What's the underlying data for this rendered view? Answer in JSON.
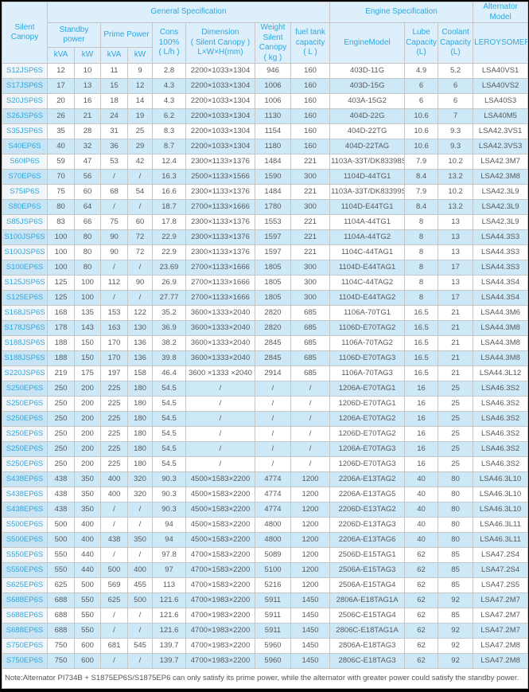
{
  "table": {
    "group_headers": {
      "general": "General Specification",
      "engine": "Engine Specification",
      "alternator": "Alternator Model"
    },
    "sub_headers": {
      "silent_canopy": "Silent Canopy",
      "standby_power": "Standby\npower",
      "prime_power": "Prime Power",
      "kva": "kVA",
      "kw": "kW",
      "cons": "Cons\n100%\n( L/h )",
      "dimension": "Dimension\n( Silent Canopy )\nL×W×H(mm)",
      "weight": "Weight\nSilent\nCanopy\n( kg )",
      "fuel_tank": "fuel tank\ncapacity\n( L )",
      "engine_model": "EngineModel",
      "lube": "Lube\nCapacity\n(L)",
      "coolant": "Coolant\nCapacity\n(L)",
      "leroysomer": "LEROYSOMER"
    },
    "rows": [
      [
        "S12JSP6S",
        "12",
        "10",
        "11",
        "9",
        "2.8",
        "2200×1033×1304",
        "946",
        "160",
        "403D-11G",
        "4.9",
        "5.2",
        "LSA40VS1"
      ],
      [
        "S17JSP6S",
        "17",
        "13",
        "15",
        "12",
        "4.3",
        "2200×1033×1304",
        "1006",
        "160",
        "403D-15G",
        "6",
        "6",
        "LSA40VS2"
      ],
      [
        "S20JSP6S",
        "20",
        "16",
        "18",
        "14",
        "4.3",
        "2200×1033×1304",
        "1006",
        "160",
        "403A-15G2",
        "6",
        "6",
        "LSA40S3"
      ],
      [
        "S26JSP6S",
        "26",
        "21",
        "24",
        "19",
        "6.2",
        "2200×1033×1304",
        "1130",
        "160",
        "404D-22G",
        "10.6",
        "7",
        "LSA40M5"
      ],
      [
        "S35JSP6S",
        "35",
        "28",
        "31",
        "25",
        "8.3",
        "2200×1033×1304",
        "1154",
        "160",
        "404D-22TG",
        "10.6",
        "9.3",
        "LSA42.3VS1"
      ],
      [
        "S40EP6S",
        "40",
        "32",
        "36",
        "29",
        "8.7",
        "2200×1033×1304",
        "1180",
        "160",
        "404D-22TAG",
        "10.6",
        "9.3",
        "LSA42.3VS3"
      ],
      [
        "S60IP6S",
        "59",
        "47",
        "53",
        "42",
        "12.4",
        "2300×1133×1376",
        "1484",
        "221",
        "1103A-33T/DK83398S",
        "7.9",
        "10.2",
        "LSA42.3M7"
      ],
      [
        "S70EP6S",
        "70",
        "56",
        "/",
        "/",
        "16.3",
        "2500×1133×1566",
        "1590",
        "300",
        "1104D-44TG1",
        "8.4",
        "13.2",
        "LSA42.3M8"
      ],
      [
        "S75IP6S",
        "75",
        "60",
        "68",
        "54",
        "16.6",
        "2300×1133×1376",
        "1484",
        "221",
        "1103A-33T/DK83399S",
        "7.9",
        "10.2",
        "LSA42.3L9"
      ],
      [
        "S80EP6S",
        "80",
        "64",
        "/",
        "/",
        "18.7",
        "2700×1133×1666",
        "1780",
        "300",
        "1104D-E44TG1",
        "8.4",
        "13.2",
        "LSA42.3L9"
      ],
      [
        "S85JSP6S",
        "83",
        "66",
        "75",
        "60",
        "17.8",
        "2300×1133×1376",
        "1553",
        "221",
        "1104A-44TG1",
        "8",
        "13",
        "LSA42.3L9"
      ],
      [
        "S100JSP6S",
        "100",
        "80",
        "90",
        "72",
        "22.9",
        "2300×1133×1376",
        "1597",
        "221",
        "1104A-44TG2",
        "8",
        "13",
        "LSA44.3S3"
      ],
      [
        "S100JSP6S",
        "100",
        "80",
        "90",
        "72",
        "22.9",
        "2300×1133×1376",
        "1597",
        "221",
        "1104C-44TAG1",
        "8",
        "13",
        "LSA44.3S3"
      ],
      [
        "S100EP6S",
        "100",
        "80",
        "/",
        "/",
        "23.69",
        "2700×1133×1666",
        "1805",
        "300",
        "1104D-E44TAG1",
        "8",
        "17",
        "LSA44.3S3"
      ],
      [
        "S125JSP6S",
        "125",
        "100",
        "112",
        "90",
        "26.9",
        "2700×1133×1666",
        "1805",
        "300",
        "1104C-44TAG2",
        "8",
        "13",
        "LSA44.3S4"
      ],
      [
        "S125EP6S",
        "125",
        "100",
        "/",
        "/",
        "27.77",
        "2700×1133×1666",
        "1805",
        "300",
        "1104D-E44TAG2",
        "8",
        "17",
        "LSA44.3S4"
      ],
      [
        "S168JSP6S",
        "168",
        "135",
        "153",
        "122",
        "35.2",
        "3600×1333×2040",
        "2820",
        "685",
        "1106A-70TG1",
        "16.5",
        "21",
        "LSA44.3M6"
      ],
      [
        "S178JSP6S",
        "178",
        "143",
        "163",
        "130",
        "36.9",
        "3600×1333×2040",
        "2820",
        "685",
        "1106D-E70TAG2",
        "16.5",
        "21",
        "LSA44.3M8"
      ],
      [
        "S188JSP6S",
        "188",
        "150",
        "170",
        "136",
        "38.2",
        "3600×1333×2040",
        "2845",
        "685",
        "1106A-70TAG2",
        "16.5",
        "21",
        "LSA44.3M8"
      ],
      [
        "S188JSP6S",
        "188",
        "150",
        "170",
        "136",
        "39.8",
        "3600×1333×2040",
        "2845",
        "685",
        "1106D-E70TAG3",
        "16.5",
        "21",
        "LSA44.3M8"
      ],
      [
        "S220JSP6S",
        "219",
        "175",
        "197",
        "158",
        "46.4",
        "3600 ×1333 ×2040",
        "2914",
        "685",
        "1106A-70TAG3",
        "16.5",
        "21",
        "LSA44.3L12"
      ],
      [
        "S250EP6S",
        "250",
        "200",
        "225",
        "180",
        "54.5",
        "/",
        "/",
        "/",
        "1206A-E70TAG1",
        "16",
        "25",
        "LSA46.3S2"
      ],
      [
        "S250EP6S",
        "250",
        "200",
        "225",
        "180",
        "54.5",
        "/",
        "/",
        "/",
        "1206D-E70TAG1",
        "16",
        "25",
        "LSA46.3S2"
      ],
      [
        "S250EP6S",
        "250",
        "200",
        "225",
        "180",
        "54.5",
        "/",
        "/",
        "/",
        "1206A-E70TAG2",
        "16",
        "25",
        "LSA46.3S2"
      ],
      [
        "S250EP6S",
        "250",
        "200",
        "225",
        "180",
        "54.5",
        "/",
        "/",
        "/",
        "1206D-E70TAG2",
        "16",
        "25",
        "LSA46.3S2"
      ],
      [
        "S250EP6S",
        "250",
        "200",
        "225",
        "180",
        "54.5",
        "/",
        "/",
        "/",
        "1206A-E70TAG3",
        "16",
        "25",
        "LSA46.3S2"
      ],
      [
        "S250EP6S",
        "250",
        "200",
        "225",
        "180",
        "54.5",
        "/",
        "/",
        "/",
        "1206D-E70TAG3",
        "16",
        "25",
        "LSA46.3S2"
      ],
      [
        "S438EP6S",
        "438",
        "350",
        "400",
        "320",
        "90.3",
        "4500×1583×2200",
        "4774",
        "1200",
        "2206A-E13TAG2",
        "40",
        "80",
        "LSA46.3L10"
      ],
      [
        "S438EP6S",
        "438",
        "350",
        "400",
        "320",
        "90.3",
        "4500×1583×2200",
        "4774",
        "1200",
        "2206A-E13TAG5",
        "40",
        "80",
        "LSA46.3L10"
      ],
      [
        "S438EP6S",
        "438",
        "350",
        "/",
        "/",
        "90.3",
        "4500×1583×2200",
        "4774",
        "1200",
        "2206D-E13TAG2",
        "40",
        "80",
        "LSA46.3L10"
      ],
      [
        "S500EP6S",
        "500",
        "400",
        "/",
        "/",
        "94",
        "4500×1583×2200",
        "4800",
        "1200",
        "2206D-E13TAG3",
        "40",
        "80",
        "LSA46.3L11"
      ],
      [
        "S500EP6S",
        "500",
        "400",
        "438",
        "350",
        "94",
        "4500×1583×2200",
        "4800",
        "1200",
        "2206A-E13TAG6",
        "40",
        "80",
        "LSA46.3L11"
      ],
      [
        "S550EP6S",
        "550",
        "440",
        "/",
        "/",
        "97.8",
        "4700×1583×2200",
        "5089",
        "1200",
        "2506D-E15TAG1",
        "62",
        "85",
        "LSA47.2S4"
      ],
      [
        "S550EP6S",
        "550",
        "440",
        "500",
        "400",
        "97",
        "4700×1583×2200",
        "5100",
        "1200",
        "2506A-E15TAG3",
        "62",
        "85",
        "LSA47.2S4"
      ],
      [
        "S625EP6S",
        "625",
        "500",
        "569",
        "455",
        "113",
        "4700×1583×2200",
        "5216",
        "1200",
        "2506A-E15TAG4",
        "62",
        "85",
        "LSA47.2S5"
      ],
      [
        "S688EP6S",
        "688",
        "550",
        "625",
        "500",
        "121.6",
        "4700×1983×2200",
        "5911",
        "1450",
        "2806A-E18TAG1A",
        "62",
        "92",
        "LSA47.2M7"
      ],
      [
        "S688EP6S",
        "688",
        "550",
        "/",
        "/",
        "121.6",
        "4700×1983×2200",
        "5911",
        "1450",
        "2506C-E15TAG4",
        "62",
        "85",
        "LSA47.2M7"
      ],
      [
        "S688EP6S",
        "688",
        "550",
        "/",
        "/",
        "121.6",
        "4700×1983×2200",
        "5911",
        "1450",
        "2806C-E18TAG1A",
        "62",
        "92",
        "LSA47.2M7"
      ],
      [
        "S750EP6S",
        "750",
        "600",
        "681",
        "545",
        "139.7",
        "4700×1983×2200",
        "5960",
        "1450",
        "2806A-E18TAG3",
        "62",
        "92",
        "LSA47.2M8"
      ],
      [
        "S750EP6S",
        "750",
        "600",
        "/",
        "/",
        "139.7",
        "4700×1983×2200",
        "5960",
        "1450",
        "2806C-E18TAG3",
        "62",
        "92",
        "LSA47.2M8"
      ]
    ]
  },
  "note": "Note:Alternator PI734B + S1875EP6S/S1875EP6 can only satisfy its prime power, while the alternator with greater power could satisfy the standby power.",
  "colors": {
    "accent_cyan": "#2ea8e0",
    "row_alt_blue": "#cde9f8",
    "header_bg": "#dceffa",
    "border": "#c6c6c6",
    "text": "#58595b"
  }
}
